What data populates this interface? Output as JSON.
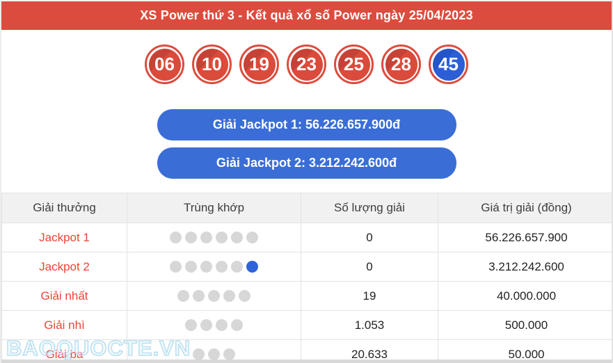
{
  "header": {
    "title": "XS Power thứ 3 - Kết quả xổ số Power ngày 25/04/2023"
  },
  "balls": [
    {
      "number": "06",
      "color": "red"
    },
    {
      "number": "10",
      "color": "red"
    },
    {
      "number": "19",
      "color": "red"
    },
    {
      "number": "23",
      "color": "red"
    },
    {
      "number": "25",
      "color": "red"
    },
    {
      "number": "28",
      "color": "red"
    },
    {
      "number": "45",
      "color": "blue"
    }
  ],
  "jackpot_buttons": [
    {
      "label": "Giải Jackpot 1: 56.226.657.900đ"
    },
    {
      "label": "Giải Jackpot 2: 3.212.242.600đ"
    }
  ],
  "table": {
    "headers": [
      "Giải thưởng",
      "Trùng khớp",
      "Số lượng giải",
      "Giá trị giải (đồng)"
    ],
    "rows": [
      {
        "prize": "Jackpot 1",
        "dots_gray": 6,
        "dots_blue": 0,
        "count": "0",
        "value": "56.226.657.900",
        "value_color": "red"
      },
      {
        "prize": "Jackpot 2",
        "dots_gray": 5,
        "dots_blue": 1,
        "count": "0",
        "value": "3.212.242.600",
        "value_color": "red"
      },
      {
        "prize": "Giải nhất",
        "dots_gray": 5,
        "dots_blue": 0,
        "count": "19",
        "value": "40.000.000",
        "value_color": "dark"
      },
      {
        "prize": "Giải nhì",
        "dots_gray": 4,
        "dots_blue": 0,
        "count": "1.053",
        "value": "500.000",
        "value_color": "dark"
      },
      {
        "prize": "Giải ba",
        "dots_gray": 3,
        "dots_blue": 0,
        "count": "20.633",
        "value": "50.000",
        "value_color": "dark"
      }
    ]
  },
  "watermark": "BAOQUOCTE.VN",
  "colors": {
    "red": "#dc4c3e",
    "ball_blue": "#2c5fd6",
    "button_blue": "#3a6ed6",
    "thead_bg": "#f1f1f1",
    "border_gray": "#e2e2e2",
    "text_red": "#ee4336",
    "text_dark": "#222222",
    "dot_gray": "#d7d7d7",
    "dot_blue": "#2f63d9",
    "watermark_blue": "#b9e0f1",
    "strip_gray": "#d8d8d8"
  }
}
